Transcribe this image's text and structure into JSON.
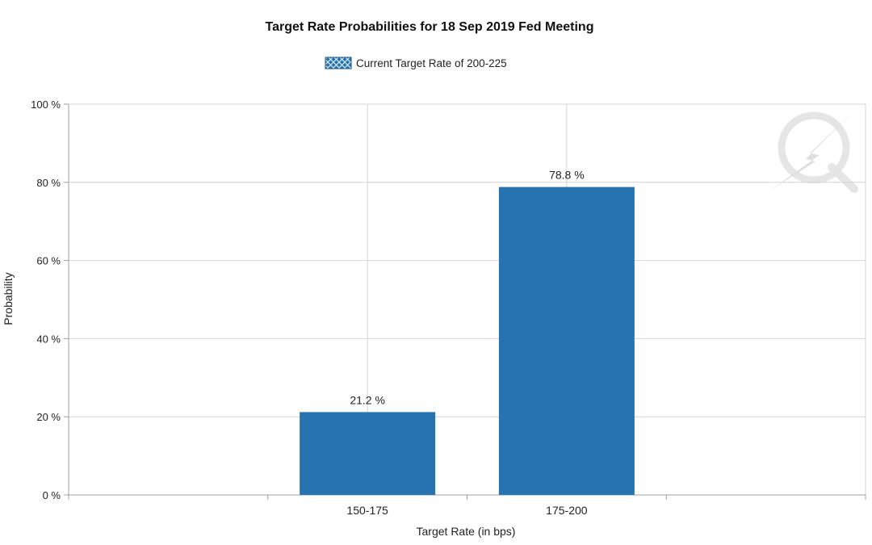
{
  "chart_data": {
    "type": "bar",
    "title": "Target Rate Probabilities for 18 Sep 2019 Fed Meeting",
    "legend": {
      "placement": "top-center",
      "label": "Current Target Rate of 200-225"
    },
    "xlabel": "Target Rate (in bps)",
    "ylabel": "Probability",
    "ylim": [
      0,
      100
    ],
    "yticks": [
      0,
      20,
      40,
      60,
      80,
      100
    ],
    "ytick_suffix": " %",
    "grid": true,
    "categories": [
      "150-175",
      "175-200"
    ],
    "values": [
      21.2,
      78.8
    ],
    "data_labels": [
      "21.2 %",
      "78.8 %"
    ],
    "colors": {
      "bar": "#2574b1",
      "grid": "#d4d4d4",
      "axis": "#a0a0a0",
      "text": "#222222",
      "watermark": "#e3e3e3"
    },
    "watermark_icon": "lightning-q-logo"
  }
}
